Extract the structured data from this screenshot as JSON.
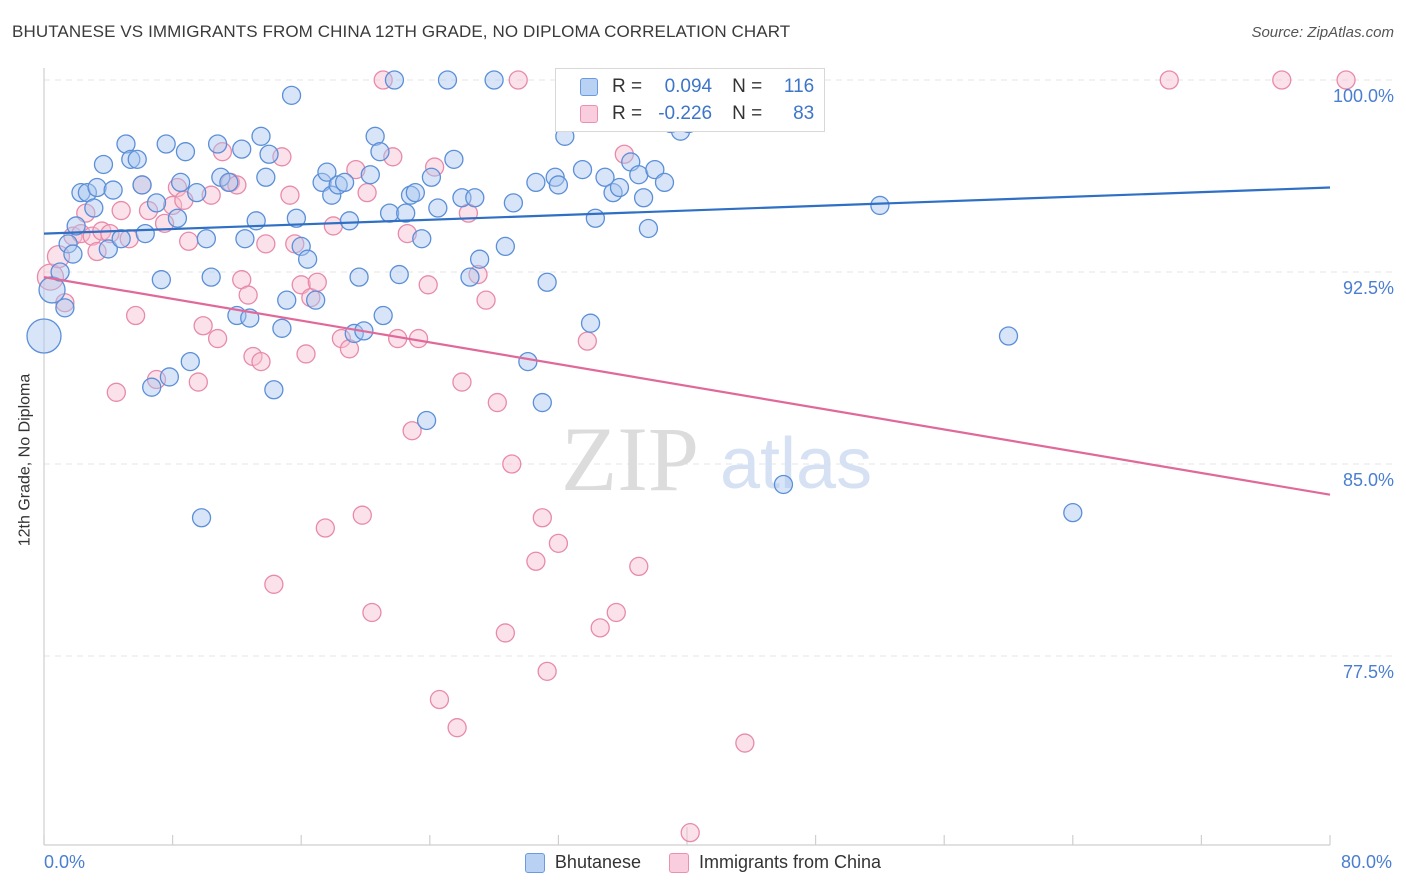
{
  "title": "BHUTANESE VS IMMIGRANTS FROM CHINA 12TH GRADE, NO DIPLOMA CORRELATION CHART",
  "source": "Source: ZipAtlas.com",
  "watermark": {
    "zip": "ZIP",
    "atlas": "atlas"
  },
  "legend": {
    "rows": [
      {
        "r_label": "R =",
        "r_value": "0.094",
        "n_label": "N =",
        "n_value": "116"
      },
      {
        "r_label": "R =",
        "r_value": "-0.226",
        "n_label": "N =",
        "n_value": "83"
      }
    ]
  },
  "bottom_legend": [
    "Bhutanese",
    "Immigrants from China"
  ],
  "colors": {
    "blue_fill": "#a9c6ef",
    "blue_stroke": "#5b8fd8",
    "blue_line": "#2f6fc4",
    "pink_fill": "#f6bfd1",
    "pink_stroke": "#e88aa9",
    "pink_line": "#e0699a",
    "axis_text": "#4a7ed0",
    "grid": "#e6e6e6"
  },
  "chart_data": {
    "type": "scatter",
    "title": "BHUTANESE VS IMMIGRANTS FROM CHINA 12TH GRADE, NO DIPLOMA CORRELATION CHART",
    "xlabel": "",
    "ylabel": "12th Grade, No Diploma",
    "xlim": [
      0,
      80
    ],
    "ylim": [
      70,
      100
    ],
    "x_tick_labels": [
      "0.0%",
      "80.0%"
    ],
    "y_ticks": [
      77.5,
      85.0,
      92.5,
      100.0
    ],
    "y_tick_labels": [
      "77.5%",
      "85.0%",
      "92.5%",
      "100.0%"
    ],
    "grid": true,
    "legend_placement": "top-center",
    "series": [
      {
        "name": "Bhutanese",
        "r": 0.094,
        "n": 116,
        "trend": [
          [
            0,
            94.0
          ],
          [
            80,
            95.8
          ]
        ],
        "points": [
          [
            0.0,
            90.0,
            17
          ],
          [
            0.5,
            91.8,
            13
          ],
          [
            1.0,
            92.5,
            9
          ],
          [
            1.3,
            91.1,
            9
          ],
          [
            1.5,
            93.6,
            9
          ],
          [
            1.8,
            93.2,
            9
          ],
          [
            2.0,
            94.3,
            9
          ],
          [
            2.3,
            95.6,
            9
          ],
          [
            2.7,
            95.6,
            9
          ],
          [
            3.1,
            95.0,
            9
          ],
          [
            3.3,
            95.8,
            9
          ],
          [
            3.7,
            96.7,
            9
          ],
          [
            4.0,
            93.4,
            9
          ],
          [
            4.3,
            95.7,
            9
          ],
          [
            4.8,
            93.8,
            9
          ],
          [
            5.1,
            97.5,
            9
          ],
          [
            5.4,
            96.9,
            9
          ],
          [
            5.8,
            96.9,
            9
          ],
          [
            6.1,
            95.9,
            9
          ],
          [
            6.3,
            94.0,
            9
          ],
          [
            6.7,
            88.0,
            9
          ],
          [
            7.0,
            95.2,
            9
          ],
          [
            7.3,
            92.2,
            9
          ],
          [
            7.6,
            97.5,
            9
          ],
          [
            7.8,
            88.4,
            9
          ],
          [
            8.3,
            94.6,
            9
          ],
          [
            8.5,
            96.0,
            9
          ],
          [
            8.8,
            97.2,
            9
          ],
          [
            9.1,
            89.0,
            9
          ],
          [
            9.5,
            95.6,
            9
          ],
          [
            9.8,
            82.9,
            9
          ],
          [
            10.1,
            93.8,
            9
          ],
          [
            10.4,
            92.3,
            9
          ],
          [
            10.8,
            97.5,
            9
          ],
          [
            11.0,
            96.2,
            9
          ],
          [
            11.5,
            96.0,
            9
          ],
          [
            12.0,
            90.8,
            9
          ],
          [
            12.3,
            97.3,
            9
          ],
          [
            12.5,
            93.8,
            9
          ],
          [
            12.8,
            90.7,
            9
          ],
          [
            13.2,
            94.5,
            9
          ],
          [
            13.5,
            97.8,
            9
          ],
          [
            13.8,
            96.2,
            9
          ],
          [
            14.0,
            97.1,
            9
          ],
          [
            14.3,
            87.9,
            9
          ],
          [
            14.8,
            90.3,
            9
          ],
          [
            15.1,
            91.4,
            9
          ],
          [
            15.4,
            99.4,
            9
          ],
          [
            15.7,
            94.6,
            9
          ],
          [
            16.0,
            93.5,
            9
          ],
          [
            16.4,
            93.0,
            9
          ],
          [
            16.9,
            91.4,
            9
          ],
          [
            17.3,
            96.0,
            9
          ],
          [
            17.6,
            96.4,
            9
          ],
          [
            17.9,
            95.5,
            9
          ],
          [
            18.3,
            95.9,
            9
          ],
          [
            18.7,
            96.0,
            9
          ],
          [
            19.0,
            94.5,
            9
          ],
          [
            19.3,
            90.1,
            9
          ],
          [
            19.6,
            92.3,
            9
          ],
          [
            19.9,
            90.2,
            9
          ],
          [
            20.3,
            96.3,
            9
          ],
          [
            20.6,
            97.8,
            9
          ],
          [
            20.9,
            97.2,
            9
          ],
          [
            21.1,
            90.8,
            9
          ],
          [
            21.5,
            94.8,
            9
          ],
          [
            21.8,
            100.0,
            9
          ],
          [
            22.1,
            92.4,
            9
          ],
          [
            22.5,
            94.8,
            9
          ],
          [
            22.8,
            95.5,
            9
          ],
          [
            23.1,
            95.6,
            9
          ],
          [
            23.5,
            93.8,
            9
          ],
          [
            23.8,
            86.7,
            9
          ],
          [
            24.1,
            96.2,
            9
          ],
          [
            24.5,
            95.0,
            9
          ],
          [
            25.1,
            100.0,
            9
          ],
          [
            25.5,
            96.9,
            9
          ],
          [
            26.0,
            95.4,
            9
          ],
          [
            26.5,
            92.3,
            9
          ],
          [
            26.8,
            95.4,
            9
          ],
          [
            27.1,
            93.0,
            9
          ],
          [
            28.0,
            100.0,
            9
          ],
          [
            28.7,
            93.5,
            9
          ],
          [
            29.2,
            95.2,
            9
          ],
          [
            30.1,
            89.0,
            9
          ],
          [
            30.6,
            96.0,
            9
          ],
          [
            31.0,
            87.4,
            9
          ],
          [
            31.3,
            92.1,
            9
          ],
          [
            31.8,
            96.2,
            9
          ],
          [
            32.0,
            95.9,
            9
          ],
          [
            32.4,
            97.8,
            9
          ],
          [
            33.0,
            100.0,
            9
          ],
          [
            33.5,
            96.5,
            9
          ],
          [
            34.0,
            90.5,
            9
          ],
          [
            34.3,
            94.6,
            9
          ],
          [
            34.9,
            96.2,
            9
          ],
          [
            35.4,
            95.6,
            9
          ],
          [
            35.8,
            95.8,
            9
          ],
          [
            36.1,
            100.0,
            9
          ],
          [
            36.5,
            96.8,
            9
          ],
          [
            37.0,
            96.3,
            9
          ],
          [
            37.3,
            95.4,
            9
          ],
          [
            37.6,
            94.2,
            9
          ],
          [
            38.0,
            96.5,
            9
          ],
          [
            38.6,
            96.0,
            9
          ],
          [
            39.0,
            98.3,
            9
          ],
          [
            39.6,
            98.0,
            9
          ],
          [
            40.1,
            98.3,
            9
          ],
          [
            40.5,
            100.0,
            9
          ],
          [
            42.0,
            98.6,
            9
          ],
          [
            43.0,
            98.5,
            9
          ],
          [
            43.5,
            98.7,
            9
          ],
          [
            44.0,
            100.0,
            9
          ],
          [
            46.0,
            84.2,
            9
          ],
          [
            52.0,
            95.1,
            9
          ],
          [
            60.0,
            90.0,
            9
          ],
          [
            64.0,
            83.1,
            9
          ]
        ]
      },
      {
        "name": "Immigrants from China",
        "r": -0.226,
        "n": 83,
        "trend": [
          [
            0,
            92.3
          ],
          [
            80,
            83.8
          ]
        ],
        "points": [
          [
            0.4,
            92.3,
            13
          ],
          [
            0.9,
            93.1,
            11
          ],
          [
            1.3,
            91.3,
            9
          ],
          [
            1.8,
            93.9,
            9
          ],
          [
            2.3,
            94.0,
            9
          ],
          [
            2.6,
            94.8,
            9
          ],
          [
            3.0,
            93.9,
            9
          ],
          [
            3.3,
            93.3,
            9
          ],
          [
            3.6,
            94.1,
            9
          ],
          [
            4.1,
            94.0,
            9
          ],
          [
            4.5,
            87.8,
            9
          ],
          [
            4.8,
            94.9,
            9
          ],
          [
            5.3,
            93.8,
            9
          ],
          [
            5.7,
            90.8,
            9
          ],
          [
            6.1,
            95.9,
            9
          ],
          [
            6.5,
            94.9,
            9
          ],
          [
            7.0,
            88.3,
            9
          ],
          [
            7.5,
            94.4,
            9
          ],
          [
            8.0,
            95.1,
            9
          ],
          [
            8.3,
            95.8,
            9
          ],
          [
            8.7,
            95.3,
            9
          ],
          [
            9.0,
            93.7,
            9
          ],
          [
            9.6,
            88.2,
            9
          ],
          [
            9.9,
            90.4,
            9
          ],
          [
            10.4,
            95.5,
            9
          ],
          [
            10.8,
            89.9,
            9
          ],
          [
            11.1,
            97.2,
            9
          ],
          [
            11.6,
            96.0,
            9
          ],
          [
            12.0,
            95.9,
            9
          ],
          [
            12.3,
            92.2,
            9
          ],
          [
            12.7,
            91.6,
            9
          ],
          [
            13.0,
            89.2,
            9
          ],
          [
            13.5,
            89.0,
            9
          ],
          [
            13.8,
            93.6,
            9
          ],
          [
            14.3,
            80.3,
            9
          ],
          [
            14.8,
            97.0,
            9
          ],
          [
            15.3,
            95.5,
            9
          ],
          [
            15.6,
            93.6,
            9
          ],
          [
            16.0,
            92.0,
            9
          ],
          [
            16.3,
            89.3,
            9
          ],
          [
            16.6,
            91.5,
            9
          ],
          [
            17.0,
            92.1,
            9
          ],
          [
            17.5,
            82.5,
            9
          ],
          [
            18.0,
            94.3,
            9
          ],
          [
            18.5,
            89.9,
            9
          ],
          [
            19.0,
            89.5,
            9
          ],
          [
            19.4,
            96.5,
            9
          ],
          [
            19.8,
            83.0,
            9
          ],
          [
            20.1,
            95.6,
            9
          ],
          [
            20.4,
            79.2,
            9
          ],
          [
            21.1,
            100.0,
            9
          ],
          [
            21.7,
            97.0,
            9
          ],
          [
            22.0,
            89.9,
            9
          ],
          [
            22.6,
            94.0,
            9
          ],
          [
            22.9,
            86.3,
            9
          ],
          [
            23.3,
            89.9,
            9
          ],
          [
            23.9,
            92.0,
            9
          ],
          [
            24.3,
            96.6,
            9
          ],
          [
            24.6,
            75.8,
            9
          ],
          [
            25.7,
            74.7,
            9
          ],
          [
            26.0,
            88.2,
            9
          ],
          [
            26.4,
            94.8,
            9
          ],
          [
            27.0,
            92.4,
            9
          ],
          [
            27.5,
            91.4,
            9
          ],
          [
            28.2,
            87.4,
            9
          ],
          [
            28.7,
            78.4,
            9
          ],
          [
            29.1,
            85.0,
            9
          ],
          [
            29.5,
            100.0,
            9
          ],
          [
            30.6,
            81.2,
            9
          ],
          [
            31.0,
            82.9,
            9
          ],
          [
            31.3,
            76.9,
            9
          ],
          [
            32.0,
            81.9,
            9
          ],
          [
            33.1,
            100.0,
            9
          ],
          [
            33.8,
            89.8,
            9
          ],
          [
            34.6,
            78.6,
            9
          ],
          [
            35.6,
            79.2,
            9
          ],
          [
            36.1,
            97.1,
            9
          ],
          [
            37.0,
            81.0,
            9
          ],
          [
            40.2,
            70.6,
            9
          ],
          [
            43.6,
            74.1,
            9
          ],
          [
            70.0,
            100.0,
            9
          ],
          [
            77.0,
            100.0,
            9
          ],
          [
            81.0,
            100.0,
            9
          ]
        ]
      }
    ]
  }
}
